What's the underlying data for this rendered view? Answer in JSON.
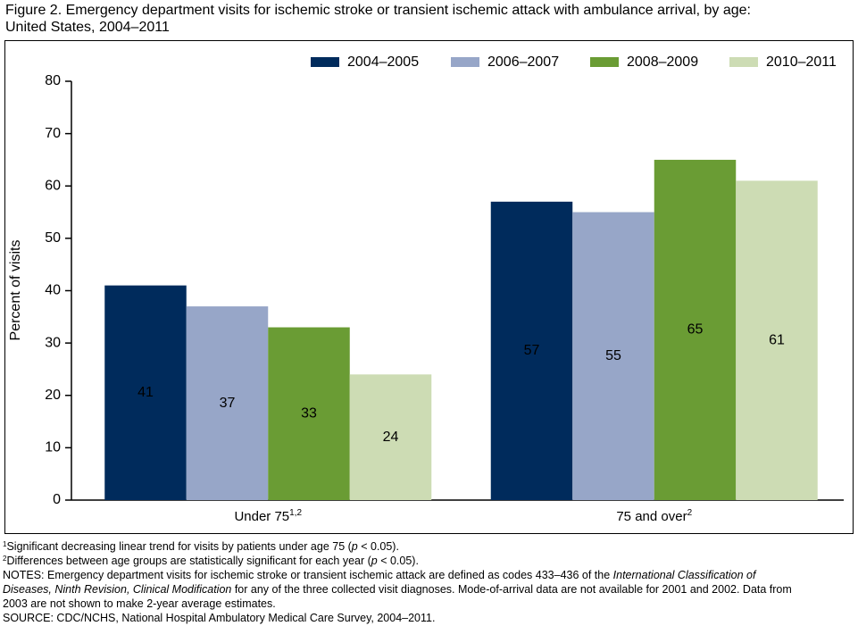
{
  "chart_data": {
    "type": "bar",
    "title": [
      "Figure 2. Emergency department visits for ischemic stroke or transient ischemic attack with ambulance arrival, by age:",
      "United States, 2004–2011"
    ],
    "ylabel": "Percent of visits",
    "categories": [
      "Under 75",
      "75 and over"
    ],
    "category_notes": [
      "1,2",
      "2"
    ],
    "series": [
      {
        "name": "2004–2005",
        "color": "#002b5c",
        "values": [
          41,
          57
        ]
      },
      {
        "name": "2006–2007",
        "color": "#97a6c8",
        "values": [
          37,
          55
        ]
      },
      {
        "name": "2008–2009",
        "color": "#6a9c34",
        "values": [
          33,
          65
        ]
      },
      {
        "name": "2010–2011",
        "color": "#cddcb4",
        "values": [
          24,
          61
        ]
      }
    ],
    "ylim": [
      0,
      80
    ],
    "yticks": [
      0,
      10,
      20,
      30,
      40,
      50,
      60,
      70,
      80
    ],
    "grid": false,
    "legend": "top",
    "footnotes": [
      [
        "1",
        "Significant decreasing linear trend for visits by patients under age 75 (",
        "p",
        " < 0.05)."
      ],
      [
        "2",
        "Differences between age groups are statistically significant for each year (",
        "p",
        " < 0.05)."
      ]
    ],
    "notes": [
      [
        "NOTES: Emergency department visits for ischemic stroke or transient ischemic attack are defined as codes 433–436 of the ",
        "International Classification of"
      ],
      [
        "Diseases, Ninth Revision, Clinical Modification",
        " for any of the three collected visit diagnoses. Mode-of-arrival data are not available for 2001 and 2002. Data from"
      ],
      [
        "2003 are not shown to make 2-year average estimates."
      ]
    ],
    "source": "SOURCE: CDC/NCHS, National Hospital Ambulatory Medical Care Survey, 2004–2011."
  }
}
